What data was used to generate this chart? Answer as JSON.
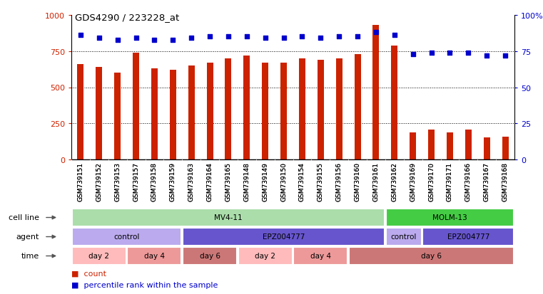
{
  "title": "GDS4290 / 223228_at",
  "samples": [
    "GSM739151",
    "GSM739152",
    "GSM739153",
    "GSM739157",
    "GSM739158",
    "GSM739159",
    "GSM739163",
    "GSM739164",
    "GSM739165",
    "GSM739148",
    "GSM739149",
    "GSM739150",
    "GSM739154",
    "GSM739155",
    "GSM739156",
    "GSM739160",
    "GSM739161",
    "GSM739162",
    "GSM739169",
    "GSM739170",
    "GSM739171",
    "GSM739166",
    "GSM739167",
    "GSM739168"
  ],
  "counts": [
    660,
    640,
    600,
    740,
    630,
    620,
    650,
    670,
    700,
    720,
    670,
    670,
    700,
    690,
    700,
    730,
    930,
    790,
    185,
    205,
    185,
    205,
    155,
    160
  ],
  "percentile_ranks": [
    86,
    84,
    83,
    84,
    83,
    83,
    84,
    85,
    85,
    85,
    84,
    84,
    85,
    84,
    85,
    85,
    88,
    86,
    73,
    74,
    74,
    74,
    72,
    72
  ],
  "bar_color": "#cc2200",
  "dot_color": "#0000cc",
  "ylim_left": [
    0,
    1000
  ],
  "ylim_right": [
    0,
    100
  ],
  "yticks_left": [
    0,
    250,
    500,
    750,
    1000
  ],
  "ytick_labels_left": [
    "0",
    "250",
    "500",
    "750",
    "1000"
  ],
  "yticks_right": [
    0,
    25,
    50,
    75,
    100
  ],
  "ytick_labels_right": [
    "0",
    "25",
    "50",
    "75",
    "100%"
  ],
  "grid_lines": [
    250,
    500,
    750
  ],
  "cell_line_groups": [
    {
      "label": "MV4-11",
      "start": 0,
      "end": 17,
      "color": "#aaddaa"
    },
    {
      "label": "MOLM-13",
      "start": 17,
      "end": 24,
      "color": "#44cc44"
    }
  ],
  "agent_groups": [
    {
      "label": "control",
      "start": 0,
      "end": 6,
      "color": "#bbaaee"
    },
    {
      "label": "EPZ004777",
      "start": 6,
      "end": 17,
      "color": "#6655cc"
    },
    {
      "label": "control",
      "start": 17,
      "end": 19,
      "color": "#bbaaee"
    },
    {
      "label": "EPZ004777",
      "start": 19,
      "end": 24,
      "color": "#6655cc"
    }
  ],
  "time_groups": [
    {
      "label": "day 2",
      "start": 0,
      "end": 3,
      "color": "#ffbbbb"
    },
    {
      "label": "day 4",
      "start": 3,
      "end": 6,
      "color": "#ee9999"
    },
    {
      "label": "day 6",
      "start": 6,
      "end": 9,
      "color": "#cc7777"
    },
    {
      "label": "day 2",
      "start": 9,
      "end": 12,
      "color": "#ffbbbb"
    },
    {
      "label": "day 4",
      "start": 12,
      "end": 15,
      "color": "#ee9999"
    },
    {
      "label": "day 6",
      "start": 15,
      "end": 24,
      "color": "#cc7777"
    }
  ],
  "row_labels": [
    "cell line",
    "agent",
    "time"
  ],
  "legend_items": [
    {
      "label": "count",
      "color": "#cc2200"
    },
    {
      "label": "percentile rank within the sample",
      "color": "#0000cc"
    }
  ],
  "bg_color": "#ffffff",
  "xtick_bg": "#dddddd"
}
